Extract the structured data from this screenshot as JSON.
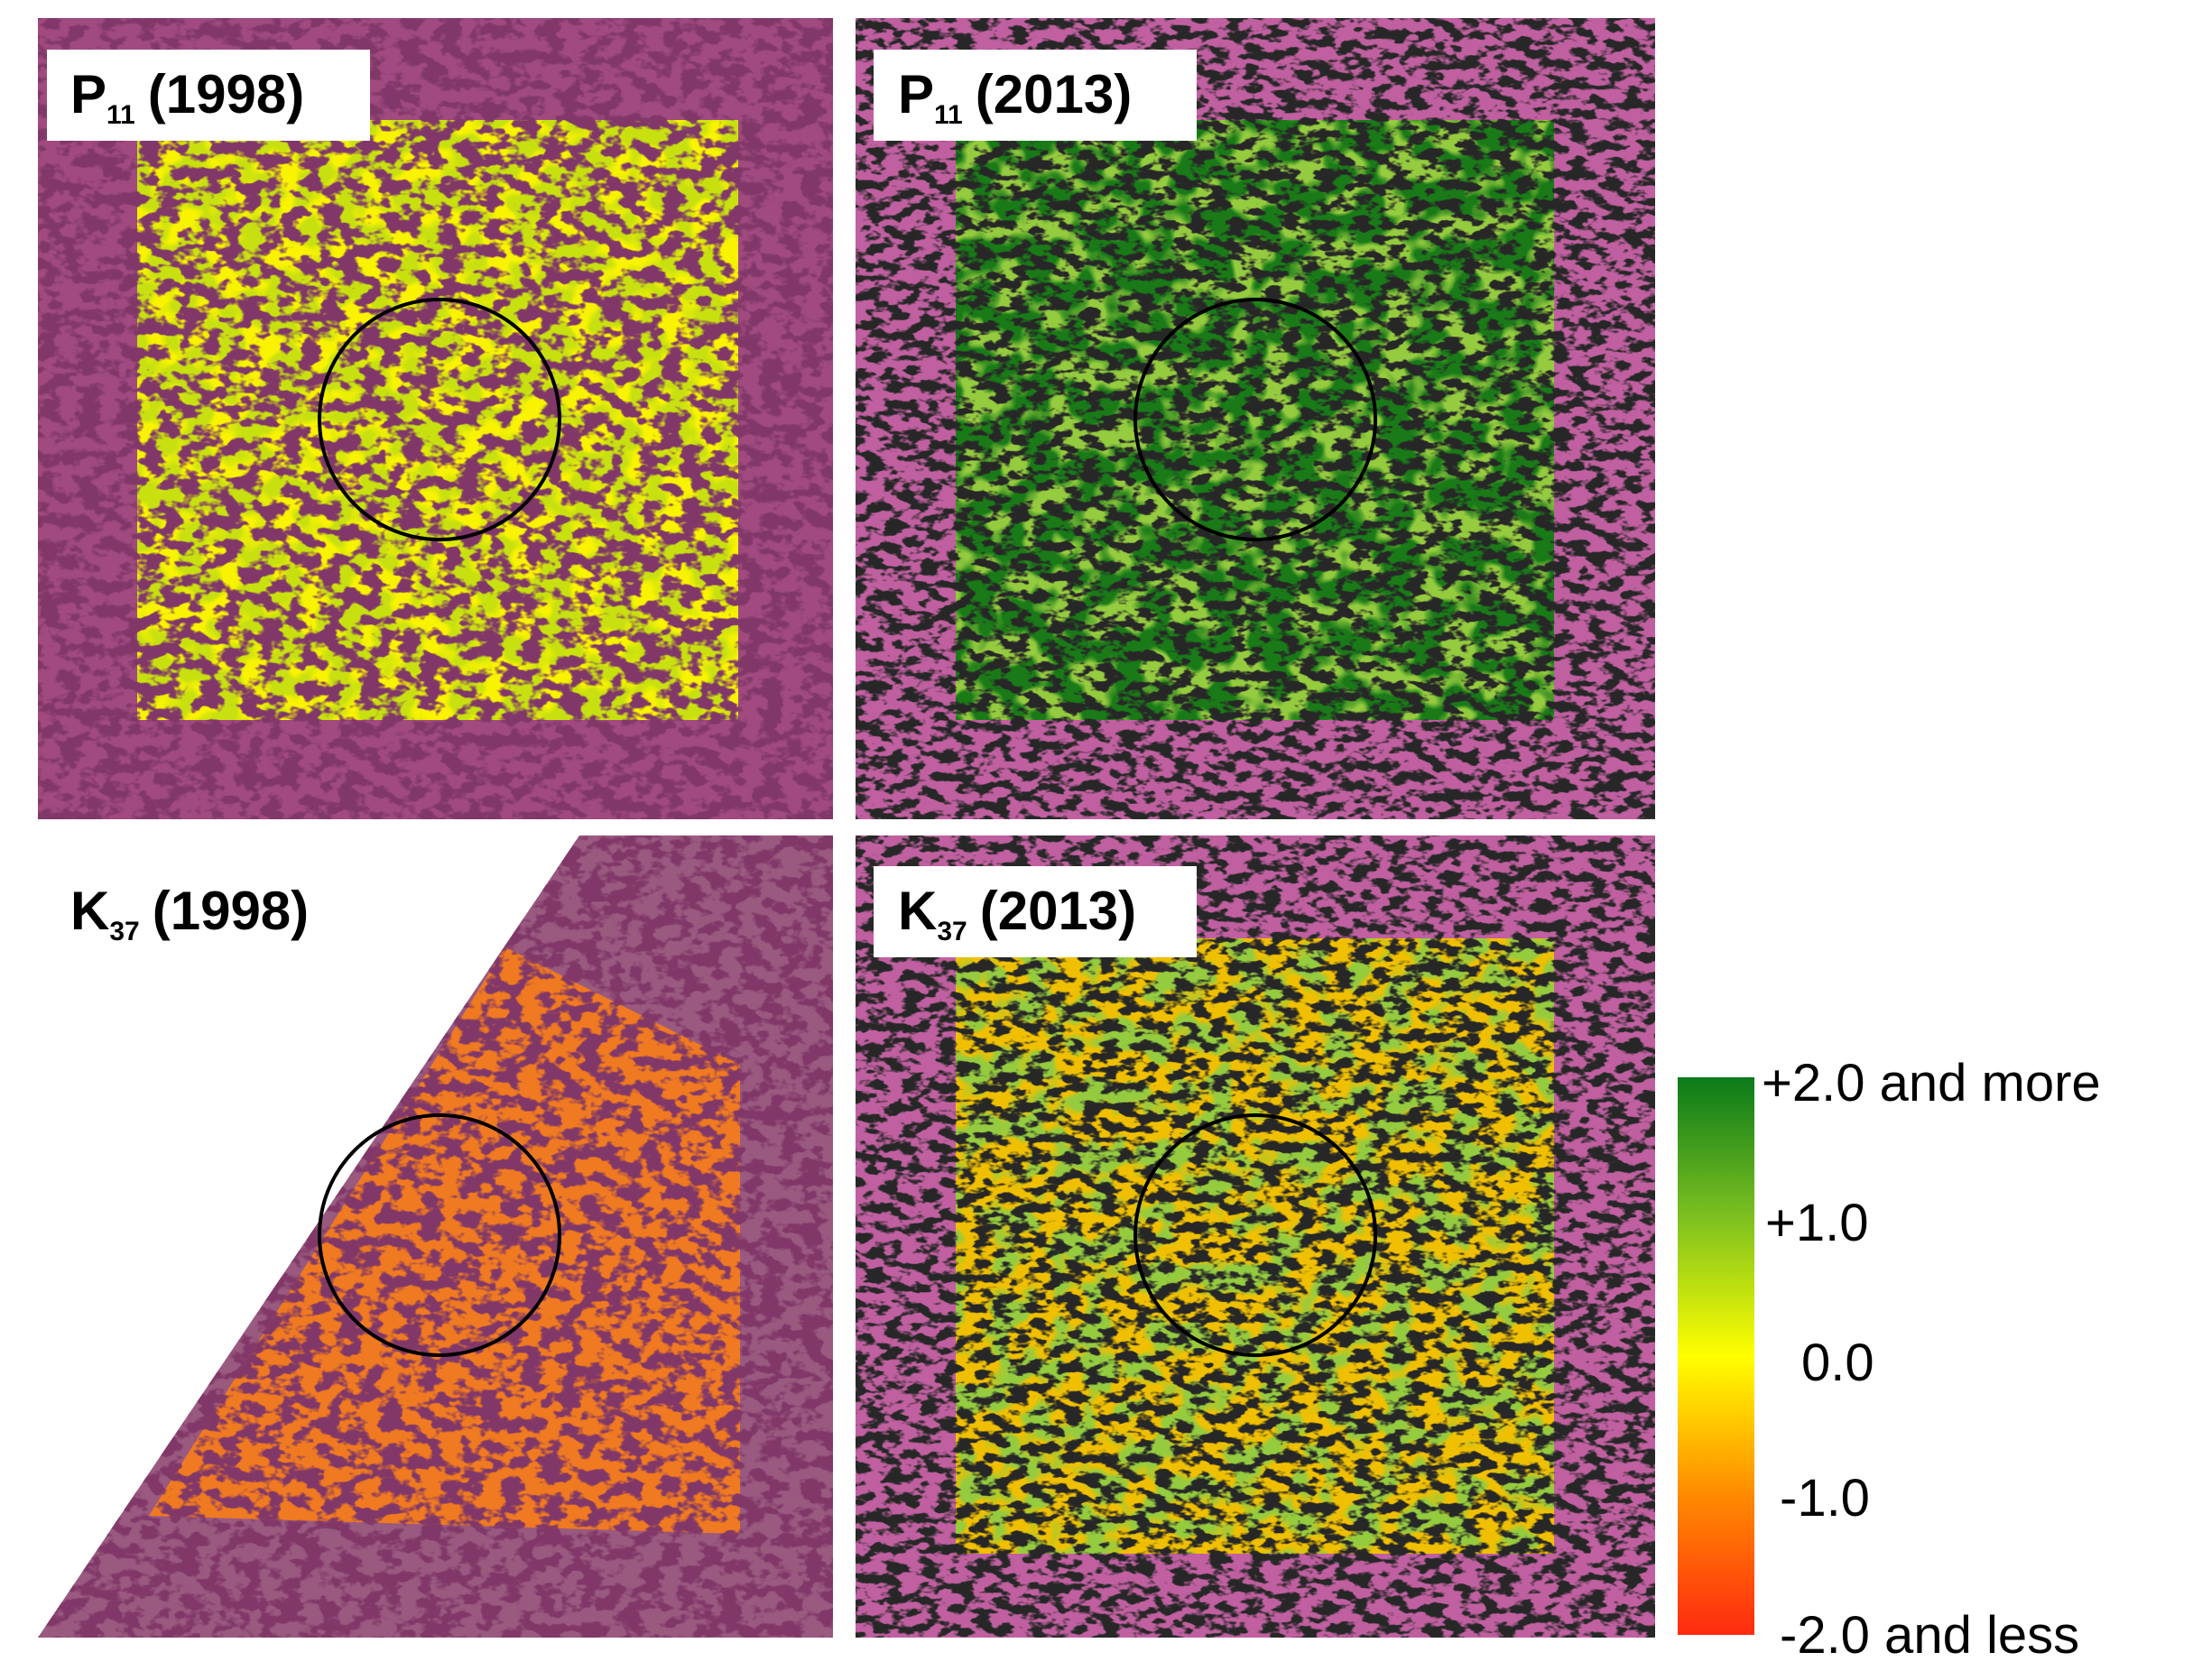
{
  "panels": [
    {
      "letter": "P",
      "subscript": "11",
      "year": "(1998)"
    },
    {
      "letter": "P",
      "subscript": "11",
      "year": "(2013)"
    },
    {
      "letter": "K",
      "subscript": "37",
      "year": "(1998)"
    },
    {
      "letter": "K",
      "subscript": "37",
      "year": "(2013)"
    }
  ],
  "legend": {
    "labels": [
      "+2.0 and more",
      "+1.0",
      "0.0",
      "-1.0",
      "-2.0 and less"
    ]
  }
}
